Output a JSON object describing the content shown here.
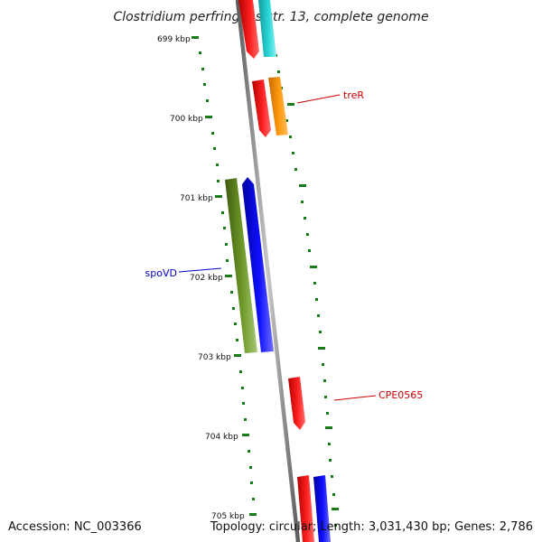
{
  "title": "Clostridium perfringens str. 13, complete genome",
  "colors": {
    "backbone": "#8a8a8a",
    "tick": "#1a7a1a",
    "gene_red": "#ff0000",
    "gene_cyan": "#22cccc",
    "gene_orange": "#ff8c00",
    "gene_olive": "#6b8e23",
    "gene_blue": "#0000ff",
    "label_red": "#cc0000",
    "label_blue": "#0000cc"
  },
  "ticks": [
    "699 kbp",
    "700 kbp",
    "701 kbp",
    "702 kbp",
    "703 kbp",
    "704 kbp",
    "705 kbp"
  ],
  "gene_labels": {
    "treR": "treR",
    "spoVD": "spoVD",
    "CPE0565": "CPE0565"
  },
  "footer": {
    "accession": "Accession: NC_003366",
    "summary": "Topology: circular; Length: 3,031,430 bp; Genes: 2,786"
  }
}
